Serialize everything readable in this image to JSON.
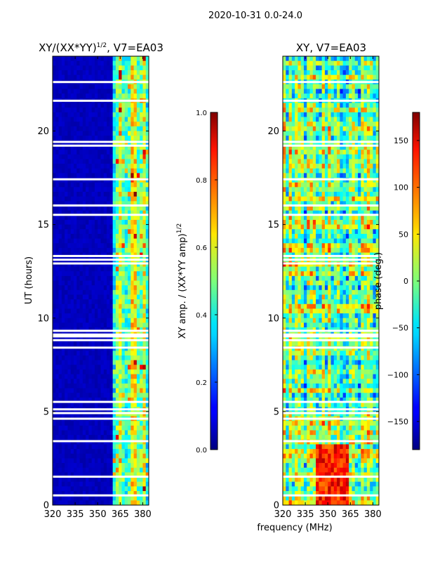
{
  "suptitle": "2020-10-31 0.0-24.0",
  "xlabel": "frequency (MHz)",
  "chart_data": [
    {
      "type": "heatmap",
      "title": "XY/(XX*YY)",
      "title_sup": "1/2",
      "title_rest": ", V7=EA03",
      "ylabel": "UT (hours)",
      "x_ticks": [
        "320",
        "335",
        "350",
        "365",
        "380"
      ],
      "y_ticks": [
        "0",
        "5",
        "10",
        "15",
        "20"
      ],
      "xlim": [
        320,
        384
      ],
      "ylim": [
        0,
        24
      ],
      "colorbar": {
        "label": "XY amp. / (XX*YY amp)",
        "label_sup": "1/2",
        "range": [
          0.0,
          1.0
        ],
        "ticks": [
          "0.0",
          "0.2",
          "0.4",
          "0.6",
          "0.8",
          "1.0"
        ]
      },
      "flagged_hours": [
        0.5,
        1.5,
        3.4,
        4.6,
        4.9,
        5.1,
        5.5,
        8.4,
        8.8,
        9.0,
        9.1,
        9.3,
        12.9,
        13.1,
        13.3,
        15.5,
        16.0,
        17.4,
        19.2,
        19.4,
        21.6,
        22.6
      ]
    },
    {
      "type": "heatmap",
      "title": "XY, V7=EA03",
      "ylabel": "",
      "x_ticks": [
        "320",
        "335",
        "350",
        "365",
        "380"
      ],
      "y_ticks": [
        "0",
        "5",
        "10",
        "15",
        "20"
      ],
      "xlim": [
        320,
        384
      ],
      "ylim": [
        0,
        24
      ],
      "colorbar": {
        "label": "phase (deg.)",
        "range": [
          -180,
          180
        ],
        "ticks": [
          "−150",
          "−100",
          "−50",
          "0",
          "50",
          "100",
          "150"
        ]
      },
      "flagged_hours": [
        0.5,
        1.5,
        3.4,
        4.6,
        4.9,
        5.1,
        5.5,
        8.4,
        8.8,
        9.0,
        9.1,
        9.3,
        12.9,
        13.1,
        13.3,
        15.5,
        16.0,
        17.4,
        19.2,
        19.4,
        21.6,
        22.6
      ]
    }
  ]
}
